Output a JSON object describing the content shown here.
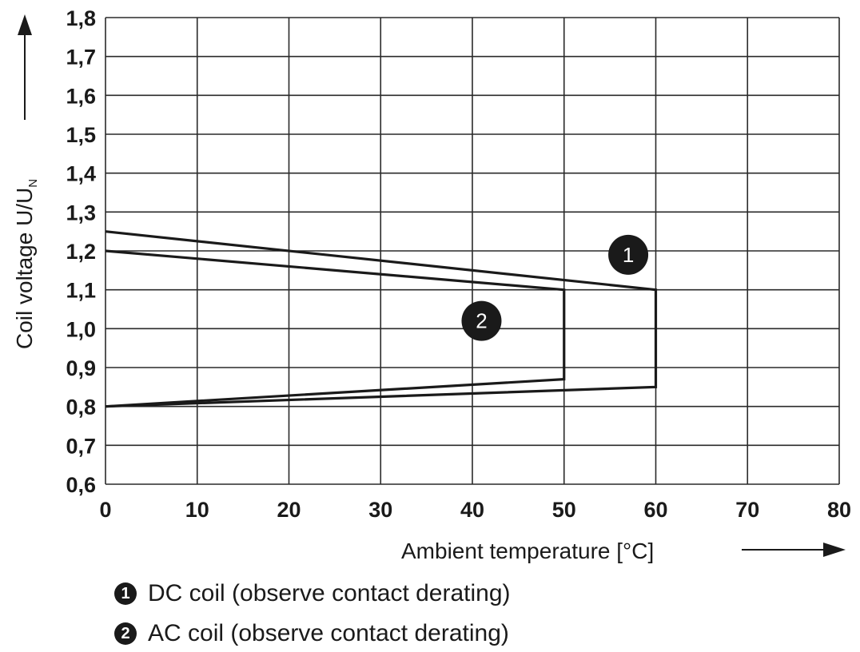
{
  "chart_data": {
    "type": "line",
    "xlabel": "Ambient temperature [°C]",
    "ylabel": "Coil voltage U/U",
    "ylabel_subscript": "N",
    "xlim": [
      0,
      80
    ],
    "ylim": [
      0.6,
      1.8
    ],
    "x_ticks": [
      "0",
      "10",
      "20",
      "30",
      "40",
      "50",
      "60",
      "70",
      "80"
    ],
    "y_ticks": [
      "0,6",
      "0,7",
      "0,8",
      "0,9",
      "1,0",
      "1,1",
      "1,2",
      "1,3",
      "1,4",
      "1,5",
      "1,6",
      "1,7",
      "1,8"
    ],
    "grid": true,
    "series": [
      {
        "name": "1",
        "x": [
          0,
          60,
          60,
          0
        ],
        "y": [
          1.25,
          1.1,
          0.85,
          0.8
        ]
      },
      {
        "name": "2",
        "x": [
          0,
          50,
          50,
          0
        ],
        "y": [
          1.2,
          1.1,
          0.87,
          0.8
        ]
      }
    ],
    "annotations": [
      {
        "label": "1",
        "x": 57,
        "y": 1.19
      },
      {
        "label": "2",
        "x": 41,
        "y": 1.02
      }
    ],
    "legend": [
      {
        "marker": "1",
        "text": "DC coil (observe contact derating)"
      },
      {
        "marker": "2",
        "text": "AC coil (observe contact derating)"
      }
    ]
  }
}
